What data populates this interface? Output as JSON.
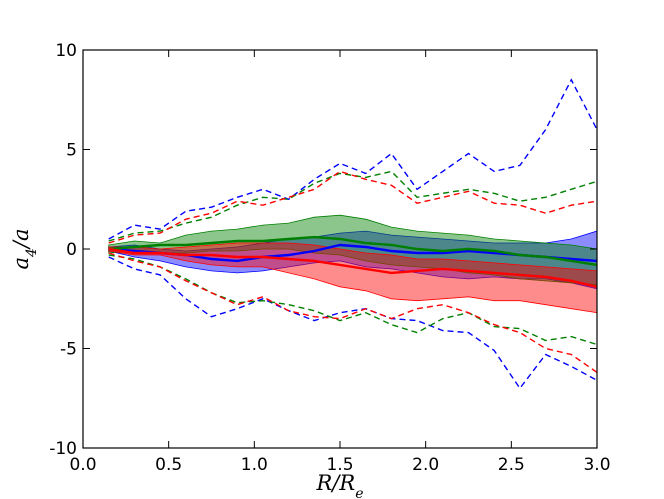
{
  "chart_data": {
    "type": "line",
    "title": "",
    "xlabel": "R/R_e",
    "ylabel": "a_4/a",
    "xlim": [
      0.0,
      3.0
    ],
    "ylim": [
      -10,
      10
    ],
    "xticks": [
      0.0,
      0.5,
      1.0,
      1.5,
      2.0,
      2.5,
      3.0
    ],
    "xtick_labels": [
      "0.0",
      "0.5",
      "1.0",
      "1.5",
      "2.0",
      "2.5",
      "3.0"
    ],
    "yticks": [
      -10,
      -5,
      0,
      5,
      10
    ],
    "ytick_labels": [
      "-10",
      "-5",
      "0",
      "5",
      "10"
    ],
    "grid": false,
    "legend": "none",
    "x": [
      0.15,
      0.3,
      0.45,
      0.6,
      0.75,
      0.9,
      1.05,
      1.2,
      1.35,
      1.5,
      1.65,
      1.8,
      1.95,
      2.1,
      2.25,
      2.4,
      2.55,
      2.7,
      2.85,
      3.0
    ],
    "series": [
      {
        "color": "#0000ff",
        "median": [
          0.0,
          -0.1,
          -0.2,
          -0.3,
          -0.5,
          -0.6,
          -0.4,
          -0.3,
          -0.1,
          0.2,
          0.1,
          -0.1,
          -0.2,
          -0.2,
          -0.1,
          -0.2,
          -0.3,
          -0.4,
          -0.5,
          -0.6
        ],
        "band_upper": [
          0.1,
          0.2,
          0.0,
          -0.1,
          0.0,
          0.1,
          0.3,
          0.5,
          0.6,
          0.8,
          0.9,
          0.7,
          0.6,
          0.5,
          0.4,
          0.3,
          0.3,
          0.3,
          0.5,
          0.9
        ],
        "band_lower": [
          -0.1,
          -0.4,
          -0.6,
          -0.9,
          -1.1,
          -1.2,
          -1.1,
          -0.9,
          -0.7,
          -0.6,
          -0.9,
          -1.0,
          -1.2,
          -1.4,
          -1.5,
          -1.4,
          -1.5,
          -1.5,
          -1.7,
          -2.0
        ],
        "dashed_upper": [
          0.5,
          1.2,
          1.0,
          1.9,
          2.1,
          2.6,
          3.0,
          2.5,
          3.5,
          4.3,
          3.8,
          4.8,
          3.0,
          3.9,
          4.8,
          3.9,
          4.2,
          6.0,
          8.5,
          6.0
        ],
        "dashed_lower": [
          -0.4,
          -1.0,
          -1.3,
          -2.5,
          -3.4,
          -3.0,
          -2.5,
          -3.1,
          -3.6,
          -3.2,
          -3.0,
          -3.5,
          -3.6,
          -4.1,
          -4.2,
          -5.1,
          -7.0,
          -5.3,
          -5.9,
          -6.6
        ]
      },
      {
        "color": "#008000",
        "median": [
          0.0,
          0.1,
          0.2,
          0.2,
          0.3,
          0.4,
          0.4,
          0.5,
          0.6,
          0.5,
          0.3,
          0.2,
          0.0,
          -0.1,
          0.0,
          -0.1,
          -0.3,
          -0.4,
          -0.6,
          -0.8
        ],
        "band_upper": [
          0.2,
          0.4,
          0.3,
          0.7,
          0.9,
          1.0,
          1.2,
          1.3,
          1.6,
          1.7,
          1.5,
          1.1,
          0.9,
          0.8,
          0.7,
          0.5,
          0.4,
          0.3,
          0.2,
          0.0
        ],
        "band_lower": [
          -0.2,
          -0.1,
          -0.2,
          -0.2,
          -0.1,
          -0.1,
          0.0,
          0.0,
          -0.2,
          -0.3,
          -0.6,
          -0.8,
          -0.9,
          -1.0,
          -1.2,
          -1.3,
          -1.5,
          -1.6,
          -1.7,
          -1.8
        ],
        "dashed_upper": [
          0.4,
          0.8,
          0.9,
          1.3,
          1.6,
          2.2,
          2.6,
          2.5,
          3.3,
          3.8,
          3.6,
          3.9,
          2.6,
          2.8,
          3.0,
          2.8,
          2.4,
          2.6,
          3.0,
          3.4
        ],
        "dashed_lower": [
          -0.3,
          -0.5,
          -0.9,
          -1.5,
          -2.2,
          -2.7,
          -2.6,
          -2.8,
          -3.1,
          -3.6,
          -3.2,
          -3.8,
          -4.2,
          -3.5,
          -3.2,
          -3.9,
          -4.0,
          -4.6,
          -4.4,
          -4.8
        ]
      },
      {
        "color": "#ff0000",
        "median": [
          0.0,
          -0.2,
          -0.2,
          -0.3,
          -0.3,
          -0.4,
          -0.4,
          -0.5,
          -0.6,
          -0.8,
          -1.0,
          -1.2,
          -1.1,
          -1.0,
          -1.1,
          -1.2,
          -1.3,
          -1.4,
          -1.6,
          -1.9
        ],
        "band_upper": [
          0.1,
          0.1,
          0.0,
          0.1,
          0.2,
          0.3,
          0.3,
          0.3,
          0.2,
          0.0,
          -0.2,
          -0.3,
          -0.5,
          -0.5,
          -0.6,
          -0.7,
          -0.8,
          -0.9,
          -1.0,
          -1.1
        ],
        "band_lower": [
          -0.1,
          -0.3,
          -0.3,
          -0.6,
          -0.8,
          -0.9,
          -0.9,
          -1.2,
          -1.5,
          -1.9,
          -2.1,
          -2.5,
          -2.6,
          -2.5,
          -2.4,
          -2.6,
          -2.6,
          -2.8,
          -3.0,
          -3.2
        ],
        "dashed_upper": [
          0.3,
          0.7,
          0.8,
          1.5,
          1.8,
          2.4,
          2.2,
          2.6,
          3.0,
          3.9,
          3.5,
          3.2,
          2.3,
          2.6,
          2.9,
          2.3,
          2.2,
          1.8,
          2.2,
          2.4
        ],
        "dashed_lower": [
          -0.2,
          -0.6,
          -0.9,
          -1.6,
          -2.2,
          -2.8,
          -2.4,
          -3.1,
          -3.4,
          -3.5,
          -3.0,
          -3.5,
          -3.0,
          -2.8,
          -3.2,
          -3.8,
          -4.2,
          -5.0,
          -5.3,
          -6.2
        ]
      }
    ]
  }
}
